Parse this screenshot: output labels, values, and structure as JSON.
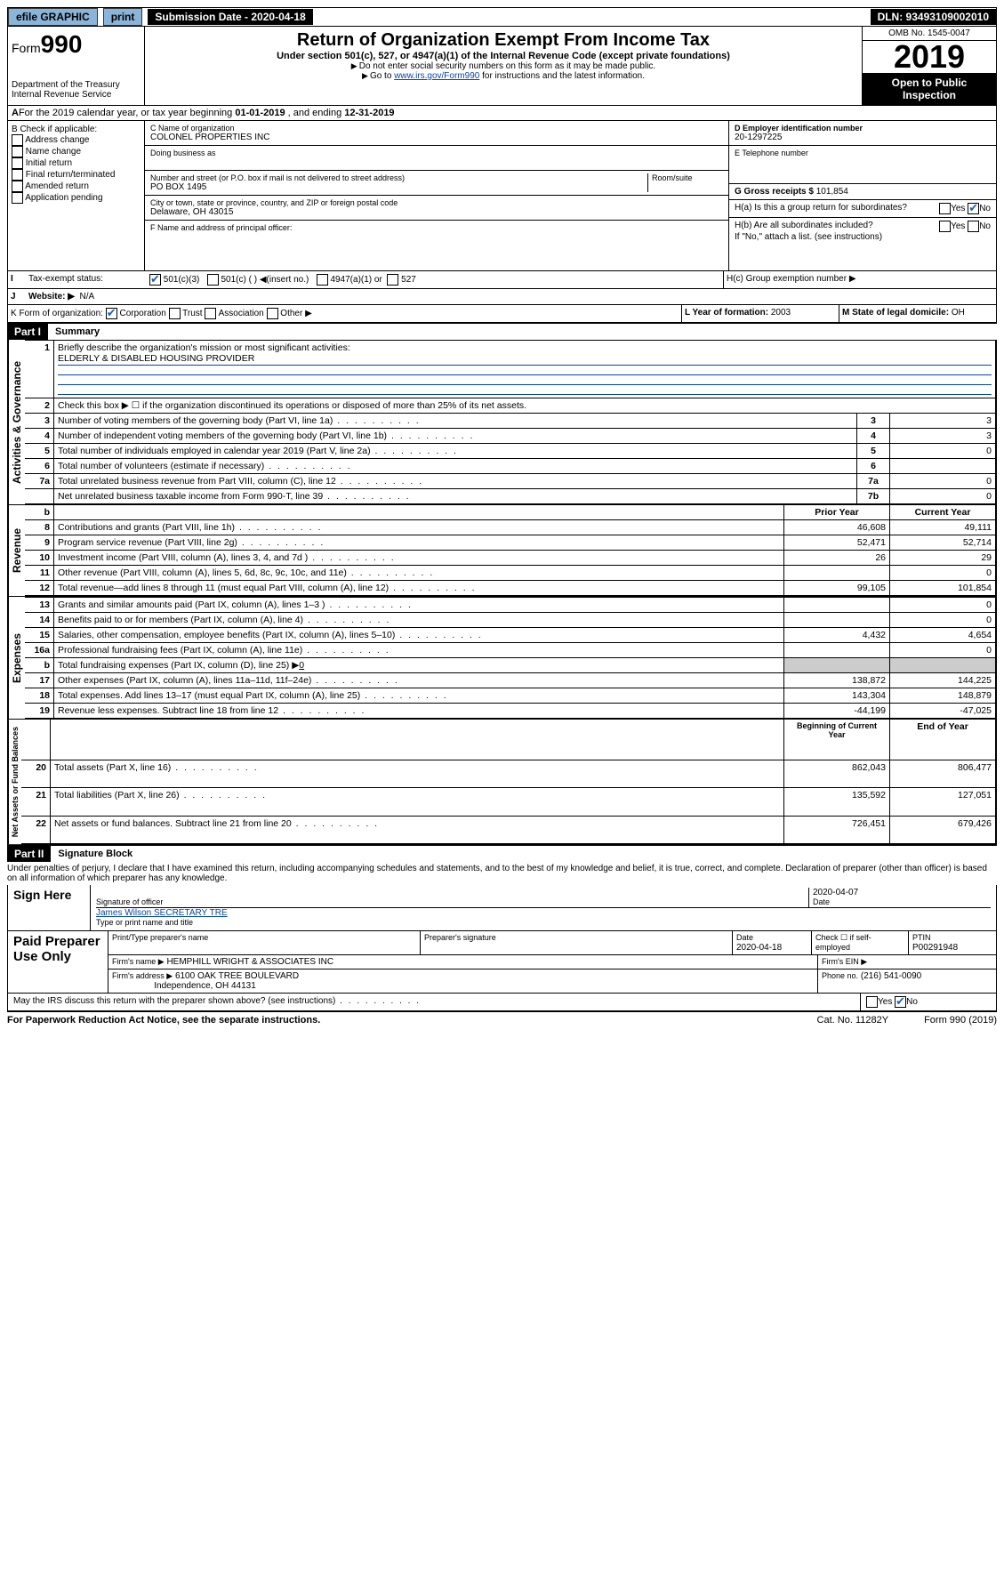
{
  "topbar": {
    "efile": "efile GRAPHIC",
    "print": "print",
    "submission": "Submission Date - 2020-04-18",
    "dln": "DLN: 93493109002010"
  },
  "header": {
    "form_prefix": "Form",
    "form_num": "990",
    "dept": "Department of the Treasury",
    "irs": "Internal Revenue Service",
    "title": "Return of Organization Exempt From Income Tax",
    "sub1": "Under section 501(c), 527, or 4947(a)(1) of the Internal Revenue Code (except private foundations)",
    "sub2": "Do not enter social security numbers on this form as it may be made public.",
    "sub3_pre": "Go to ",
    "sub3_link": "www.irs.gov/Form990",
    "sub3_post": " for instructions and the latest information.",
    "omb": "OMB No. 1545-0047",
    "year": "2019",
    "otp": "Open to Public Inspection"
  },
  "period": {
    "text_a": "For the 2019 calendar year, or tax year beginning ",
    "begin": "01-01-2019",
    "text_b": " , and ending ",
    "end": "12-31-2019"
  },
  "check_if": {
    "hdr": "B Check if applicable:",
    "items": [
      "Address change",
      "Name change",
      "Initial return",
      "Final return/terminated",
      "Amended return",
      "Application pending"
    ]
  },
  "org": {
    "c_label": "C Name of organization",
    "name": "COLONEL PROPERTIES INC",
    "dba_label": "Doing business as",
    "dba": "",
    "addr_label": "Number and street (or P.O. box if mail is not delivered to street address)",
    "room_label": "Room/suite",
    "addr": "PO BOX 1495",
    "city_label": "City or town, state or province, country, and ZIP or foreign postal code",
    "city": "Delaware, OH  43015",
    "f_label": "F  Name and address of principal officer:"
  },
  "d": {
    "label": "D Employer identification number",
    "ein": "20-1297225",
    "e_label": "E Telephone number",
    "g_label": "G Gross receipts $",
    "g_val": "101,854"
  },
  "h": {
    "a": "H(a)  Is this a group return for subordinates?",
    "b": "H(b)  Are all subordinates included?",
    "b_note": "If \"No,\" attach a list. (see instructions)",
    "c": "H(c)  Group exemption number ▶",
    "yes": "Yes",
    "no": "No"
  },
  "i": {
    "label": "Tax-exempt status:",
    "o1": "501(c)(3)",
    "o2": "501(c) (  ) ◀(insert no.)",
    "o3": "4947(a)(1) or",
    "o4": "527"
  },
  "j": {
    "label": "Website: ▶",
    "val": "N/A"
  },
  "k": {
    "label": "K Form of organization:",
    "corp": "Corporation",
    "trust": "Trust",
    "assoc": "Association",
    "other": "Other ▶"
  },
  "l": {
    "label": "L Year of formation:",
    "val": "2003"
  },
  "m": {
    "label": "M State of legal domicile:",
    "val": "OH"
  },
  "part1": {
    "hdr": "Part I",
    "title": "Summary"
  },
  "summary": {
    "l1": "Briefly describe the organization's mission or most significant activities:",
    "l1v": "ELDERLY & DISABLED HOUSING PROVIDER",
    "l2": "Check this box ▶ ☐  if the organization discontinued its operations or disposed of more than 25% of its net assets.",
    "rows": [
      {
        "n": "3",
        "t": "Number of voting members of the governing body (Part VI, line 1a)",
        "b": "3",
        "v": "3"
      },
      {
        "n": "4",
        "t": "Number of independent voting members of the governing body (Part VI, line 1b)",
        "b": "4",
        "v": "3"
      },
      {
        "n": "5",
        "t": "Total number of individuals employed in calendar year 2019 (Part V, line 2a)",
        "b": "5",
        "v": "0"
      },
      {
        "n": "6",
        "t": "Total number of volunteers (estimate if necessary)",
        "b": "6",
        "v": ""
      },
      {
        "n": "7a",
        "t": "Total unrelated business revenue from Part VIII, column (C), line 12",
        "b": "7a",
        "v": "0"
      },
      {
        "n": "",
        "t": "Net unrelated business taxable income from Form 990-T, line 39",
        "b": "7b",
        "v": "0"
      }
    ]
  },
  "fin": {
    "hdr_prior": "Prior Year",
    "hdr_curr": "Current Year",
    "revenue": [
      {
        "n": "8",
        "t": "Contributions and grants (Part VIII, line 1h)",
        "p": "46,608",
        "c": "49,111"
      },
      {
        "n": "9",
        "t": "Program service revenue (Part VIII, line 2g)",
        "p": "52,471",
        "c": "52,714"
      },
      {
        "n": "10",
        "t": "Investment income (Part VIII, column (A), lines 3, 4, and 7d )",
        "p": "26",
        "c": "29"
      },
      {
        "n": "11",
        "t": "Other revenue (Part VIII, column (A), lines 5, 6d, 8c, 9c, 10c, and 11e)",
        "p": "",
        "c": "0"
      },
      {
        "n": "12",
        "t": "Total revenue—add lines 8 through 11 (must equal Part VIII, column (A), line 12)",
        "p": "99,105",
        "c": "101,854"
      }
    ],
    "expenses": [
      {
        "n": "13",
        "t": "Grants and similar amounts paid (Part IX, column (A), lines 1–3 )",
        "p": "",
        "c": "0"
      },
      {
        "n": "14",
        "t": "Benefits paid to or for members (Part IX, column (A), line 4)",
        "p": "",
        "c": "0"
      },
      {
        "n": "15",
        "t": "Salaries, other compensation, employee benefits (Part IX, column (A), lines 5–10)",
        "p": "4,432",
        "c": "4,654"
      },
      {
        "n": "16a",
        "t": "Professional fundraising fees (Part IX, column (A), line 11e)",
        "p": "",
        "c": "0"
      }
    ],
    "l16b_n": "b",
    "l16b": "Total fundraising expenses (Part IX, column (D), line 25) ▶",
    "l16b_v": "0",
    "exp2": [
      {
        "n": "17",
        "t": "Other expenses (Part IX, column (A), lines 11a–11d, 11f–24e)",
        "p": "138,872",
        "c": "144,225"
      },
      {
        "n": "18",
        "t": "Total expenses. Add lines 13–17 (must equal Part IX, column (A), line 25)",
        "p": "143,304",
        "c": "148,879"
      },
      {
        "n": "19",
        "t": "Revenue less expenses. Subtract line 18 from line 12",
        "p": "-44,199",
        "c": "-47,025"
      }
    ],
    "hdr_beg": "Beginning of Current Year",
    "hdr_end": "End of Year",
    "net": [
      {
        "n": "20",
        "t": "Total assets (Part X, line 16)",
        "p": "862,043",
        "c": "806,477"
      },
      {
        "n": "21",
        "t": "Total liabilities (Part X, line 26)",
        "p": "135,592",
        "c": "127,051"
      },
      {
        "n": "22",
        "t": "Net assets or fund balances. Subtract line 21 from line 20",
        "p": "726,451",
        "c": "679,426"
      }
    ]
  },
  "vlabels": {
    "ag": "Activities & Governance",
    "rev": "Revenue",
    "exp": "Expenses",
    "net": "Net Assets or Fund Balances"
  },
  "part2": {
    "hdr": "Part II",
    "title": "Signature Block",
    "decl": "Under penalties of perjury, I declare that I have examined this return, including accompanying schedules and statements, and to the best of my knowledge and belief, it is true, correct, and complete. Declaration of preparer (other than officer) is based on all information of which preparer has any knowledge."
  },
  "sign": {
    "here": "Sign Here",
    "sig_label": "Signature of officer",
    "date_label": "Date",
    "date": "2020-04-07",
    "name": "James Wilson  SECRETARY TRE",
    "name_label": "Type or print name and title"
  },
  "paid": {
    "here": "Paid Preparer Use Only",
    "h1": "Print/Type preparer's name",
    "h2": "Preparer's signature",
    "h3": "Date",
    "h3v": "2020-04-18",
    "h4": "Check ☐ if self-employed",
    "h5": "PTIN",
    "h5v": "P00291948",
    "firm_label": "Firm's name   ▶",
    "firm": "HEMPHILL WRIGHT & ASSOCIATES INC",
    "ein_label": "Firm's EIN ▶",
    "addr_label": "Firm's address ▶",
    "addr1": "6100 OAK TREE BOULEVARD",
    "addr2": "Independence, OH  44131",
    "phone_label": "Phone no.",
    "phone": "(216) 541-0090"
  },
  "discuss": "May the IRS discuss this return with the preparer shown above? (see instructions)",
  "footer": {
    "pra": "For Paperwork Reduction Act Notice, see the separate instructions.",
    "cat": "Cat. No. 11282Y",
    "form": "Form 990 (2019)"
  }
}
